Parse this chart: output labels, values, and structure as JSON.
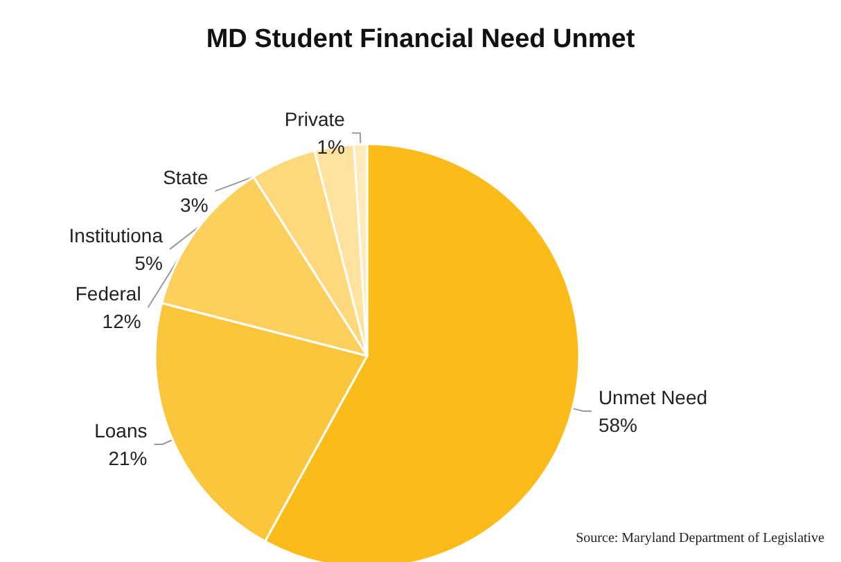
{
  "chart_data": {
    "type": "pie",
    "title": "MD Student Financial Need Unmet",
    "categories": [
      "Unmet Need",
      "Loans",
      "Federal",
      "Institutiona",
      "State",
      "Private"
    ],
    "values": [
      58,
      21,
      12,
      5,
      3,
      1
    ],
    "value_labels": [
      "58%",
      "21%",
      "12%",
      "5%",
      "3%",
      "1%"
    ],
    "colors": [
      "#fbbc19",
      "#fcc63c",
      "#fdd05e",
      "#fdd97c",
      "#fee29d",
      "#feeabb"
    ],
    "legend": false,
    "annotations": [
      "Source: Maryland Department of Legislative"
    ]
  }
}
